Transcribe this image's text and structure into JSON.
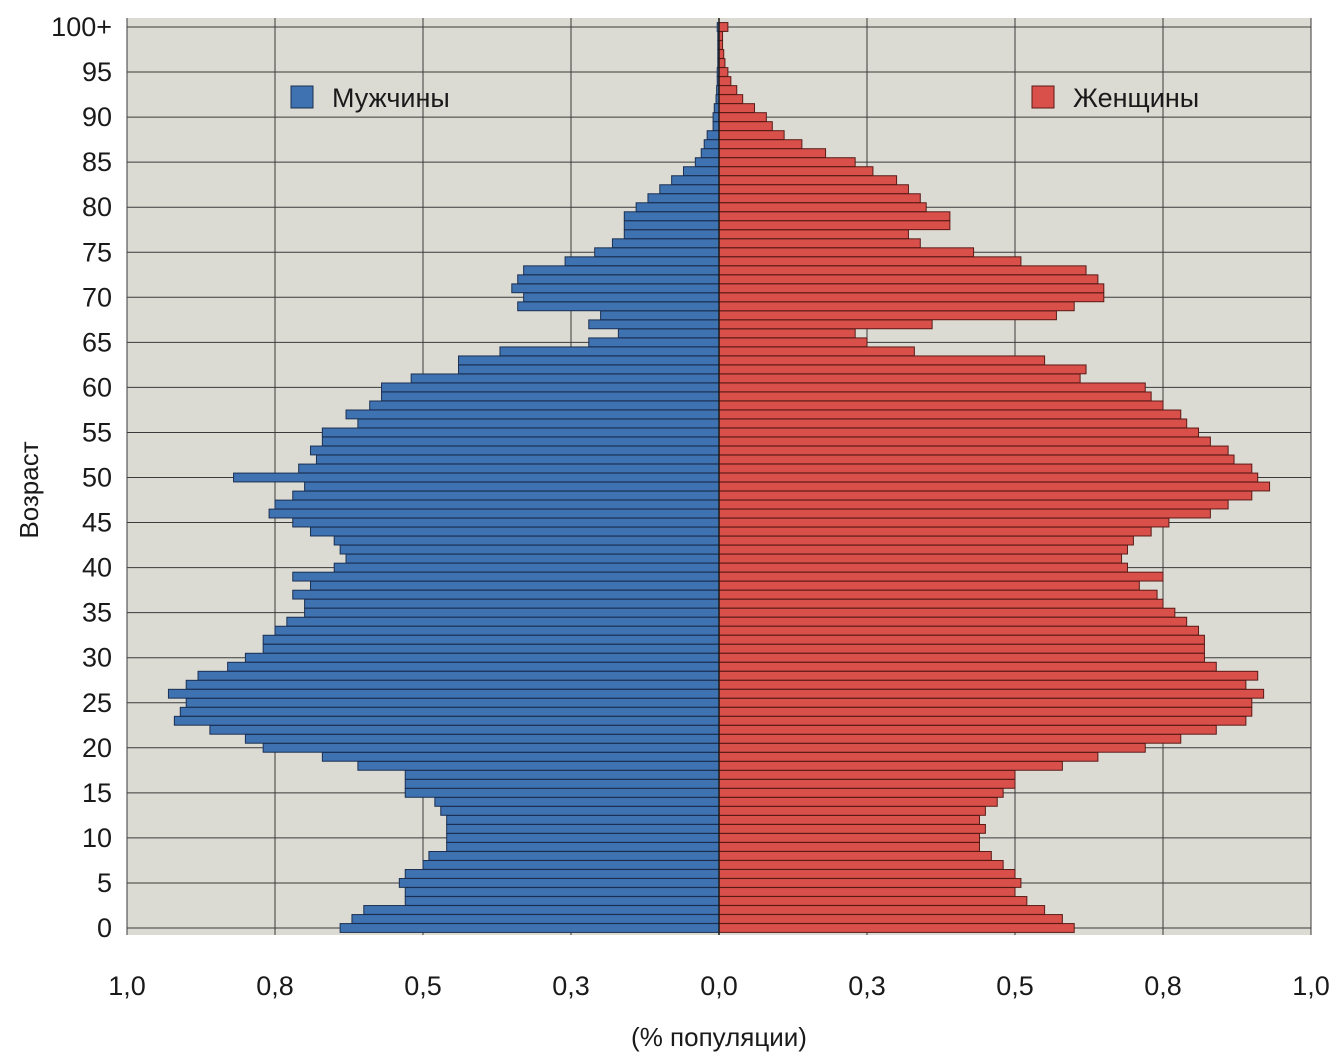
{
  "chart_data": {
    "type": "bar",
    "orientation": "horizontal",
    "subtype": "population-pyramid",
    "title": "",
    "xlabel": "(% популяции)",
    "ylabel": "Возраст",
    "x_tick_labels": [
      "1,0",
      "0,8",
      "0,5",
      "0,3",
      "0,0",
      "0,3",
      "0,5",
      "0,8",
      "1,0"
    ],
    "y_tick_labels": [
      "0",
      "5",
      "10",
      "15",
      "20",
      "25",
      "30",
      "35",
      "40",
      "45",
      "50",
      "55",
      "60",
      "65",
      "70",
      "75",
      "80",
      "85",
      "90",
      "95",
      "100+"
    ],
    "xlim": [
      -1.0,
      1.0
    ],
    "ylim": [
      0,
      100
    ],
    "grid": true,
    "legend_position": "top",
    "categories": [
      0,
      1,
      2,
      3,
      4,
      5,
      6,
      7,
      8,
      9,
      10,
      11,
      12,
      13,
      14,
      15,
      16,
      17,
      18,
      19,
      20,
      21,
      22,
      23,
      24,
      25,
      26,
      27,
      28,
      29,
      30,
      31,
      32,
      33,
      34,
      35,
      36,
      37,
      38,
      39,
      40,
      41,
      42,
      43,
      44,
      45,
      46,
      47,
      48,
      49,
      50,
      51,
      52,
      53,
      54,
      55,
      56,
      57,
      58,
      59,
      60,
      61,
      62,
      63,
      64,
      65,
      66,
      67,
      68,
      69,
      70,
      71,
      72,
      73,
      74,
      75,
      76,
      77,
      78,
      79,
      80,
      81,
      82,
      83,
      84,
      85,
      86,
      87,
      88,
      89,
      90,
      91,
      92,
      93,
      94,
      95,
      96,
      97,
      98,
      99,
      100
    ],
    "series": [
      {
        "name": "Мужчины",
        "color": "#3f72b0",
        "side": "left",
        "values": [
          0.64,
          0.62,
          0.6,
          0.53,
          0.53,
          0.54,
          0.53,
          0.5,
          0.49,
          0.46,
          0.46,
          0.46,
          0.46,
          0.47,
          0.48,
          0.53,
          0.53,
          0.53,
          0.61,
          0.67,
          0.77,
          0.8,
          0.86,
          0.92,
          0.91,
          0.9,
          0.93,
          0.9,
          0.88,
          0.83,
          0.8,
          0.77,
          0.77,
          0.75,
          0.73,
          0.7,
          0.7,
          0.72,
          0.69,
          0.72,
          0.65,
          0.63,
          0.64,
          0.65,
          0.69,
          0.72,
          0.76,
          0.75,
          0.72,
          0.7,
          0.82,
          0.71,
          0.68,
          0.69,
          0.67,
          0.67,
          0.61,
          0.63,
          0.59,
          0.57,
          0.57,
          0.52,
          0.44,
          0.44,
          0.37,
          0.22,
          0.17,
          0.22,
          0.2,
          0.34,
          0.33,
          0.35,
          0.34,
          0.33,
          0.26,
          0.21,
          0.18,
          0.16,
          0.16,
          0.16,
          0.14,
          0.12,
          0.1,
          0.08,
          0.06,
          0.04,
          0.03,
          0.025,
          0.02,
          0.01,
          0.01,
          0.008,
          0.005,
          0.004,
          0.003,
          0.003,
          0.002,
          0.002,
          0.002,
          0.002,
          0.003
        ]
      },
      {
        "name": "Женщины",
        "color": "#d9504a",
        "side": "right",
        "values": [
          0.6,
          0.58,
          0.55,
          0.52,
          0.5,
          0.51,
          0.5,
          0.48,
          0.46,
          0.44,
          0.44,
          0.45,
          0.44,
          0.45,
          0.47,
          0.48,
          0.5,
          0.5,
          0.58,
          0.64,
          0.72,
          0.78,
          0.84,
          0.89,
          0.9,
          0.9,
          0.92,
          0.89,
          0.91,
          0.84,
          0.82,
          0.82,
          0.82,
          0.81,
          0.79,
          0.77,
          0.75,
          0.74,
          0.71,
          0.75,
          0.69,
          0.68,
          0.69,
          0.7,
          0.73,
          0.76,
          0.83,
          0.86,
          0.9,
          0.93,
          0.91,
          0.9,
          0.87,
          0.86,
          0.83,
          0.81,
          0.79,
          0.78,
          0.75,
          0.73,
          0.72,
          0.61,
          0.62,
          0.55,
          0.33,
          0.25,
          0.23,
          0.36,
          0.57,
          0.6,
          0.65,
          0.65,
          0.64,
          0.62,
          0.51,
          0.43,
          0.34,
          0.32,
          0.39,
          0.39,
          0.35,
          0.34,
          0.32,
          0.3,
          0.26,
          0.23,
          0.18,
          0.14,
          0.11,
          0.09,
          0.08,
          0.06,
          0.04,
          0.03,
          0.02,
          0.015,
          0.01,
          0.008,
          0.006,
          0.006,
          0.015
        ]
      }
    ]
  },
  "legend": {
    "male_label": "Мужчины",
    "female_label": "Женщины"
  }
}
